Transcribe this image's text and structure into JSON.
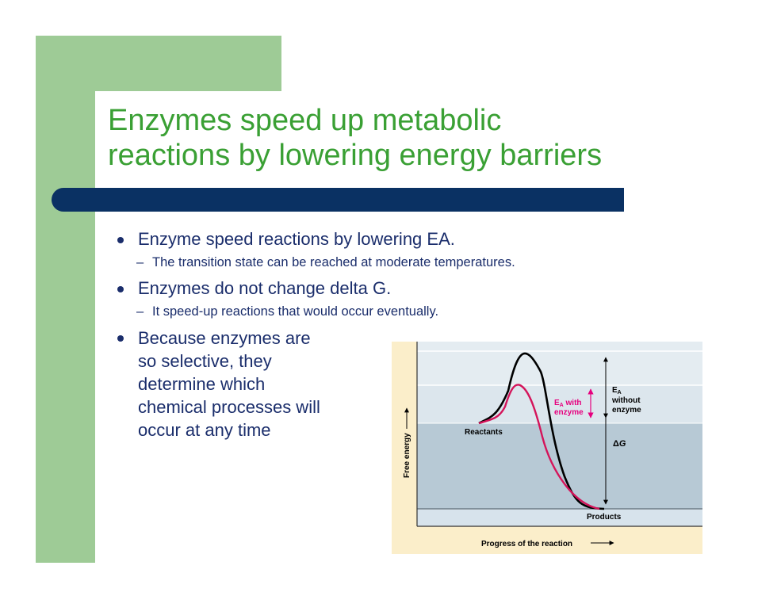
{
  "title": {
    "line1": "Enzymes speed up metabolic",
    "line2": "reactions by lowering energy barriers"
  },
  "bullets": [
    {
      "text": "Enzyme speed reactions by lowering EA.",
      "sub": "The transition state can be reached at moderate temperatures."
    },
    {
      "text": "Enzymes do not change delta G.",
      "sub": "It speed-up reactions that would occur eventually."
    },
    {
      "text": "Because enzymes are so selective, they determine which chemical processes will occur at any time",
      "sub": null
    }
  ],
  "diagram": {
    "y_axis_label": "Free energy",
    "x_axis_label": "Progress of the reaction",
    "reactants_label": "Reactants",
    "products_label": "Products",
    "ea_with": {
      "sym": "E",
      "sub": "A",
      "rest": " with",
      "line2": "enzyme"
    },
    "ea_without": {
      "sym": "E",
      "sub": "A",
      "line2": "without",
      "line3": "enzyme"
    },
    "delta_g": {
      "sym": "Δ",
      "var": "G"
    },
    "colors": {
      "without_enzyme_curve": "#000000",
      "with_enzyme_curve": "#d4145a",
      "ea_with_label": "#e6007e",
      "frame_bg": "#fbeeca",
      "upper_band": "#e4ecf1",
      "middle_band": "#b7c9d5",
      "lower_band": "#d7e3ec"
    }
  }
}
